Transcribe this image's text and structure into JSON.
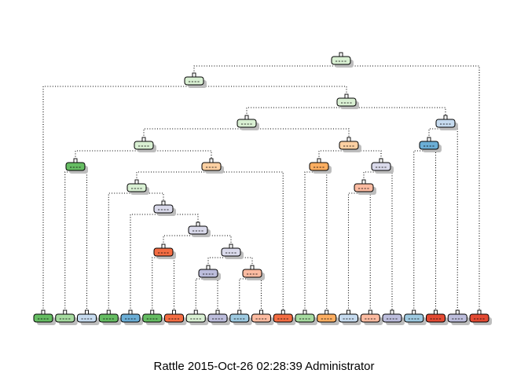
{
  "caption": "Rattle 2015-Oct-26 02:28:39 Administrator",
  "colors": {
    "class_green_dark": "#66bd63",
    "class_green_light": "#a6dba0",
    "class_green_pale": "#d9f0d3",
    "class_blue_light": "#c6dbef",
    "class_blue_mid": "#6baed6",
    "class_blue_soft": "#9ecae1",
    "class_orange_dark": "#f46d43",
    "class_orange_mid": "#fdae61",
    "class_orange_pale": "#fdd0a2",
    "class_salmon": "#fcbba1",
    "class_red": "#e34a33",
    "class_lavender": "#bcbddc",
    "class_lavender_pale": "#dadaeb",
    "class_white": "#f7f7f7"
  }
}
